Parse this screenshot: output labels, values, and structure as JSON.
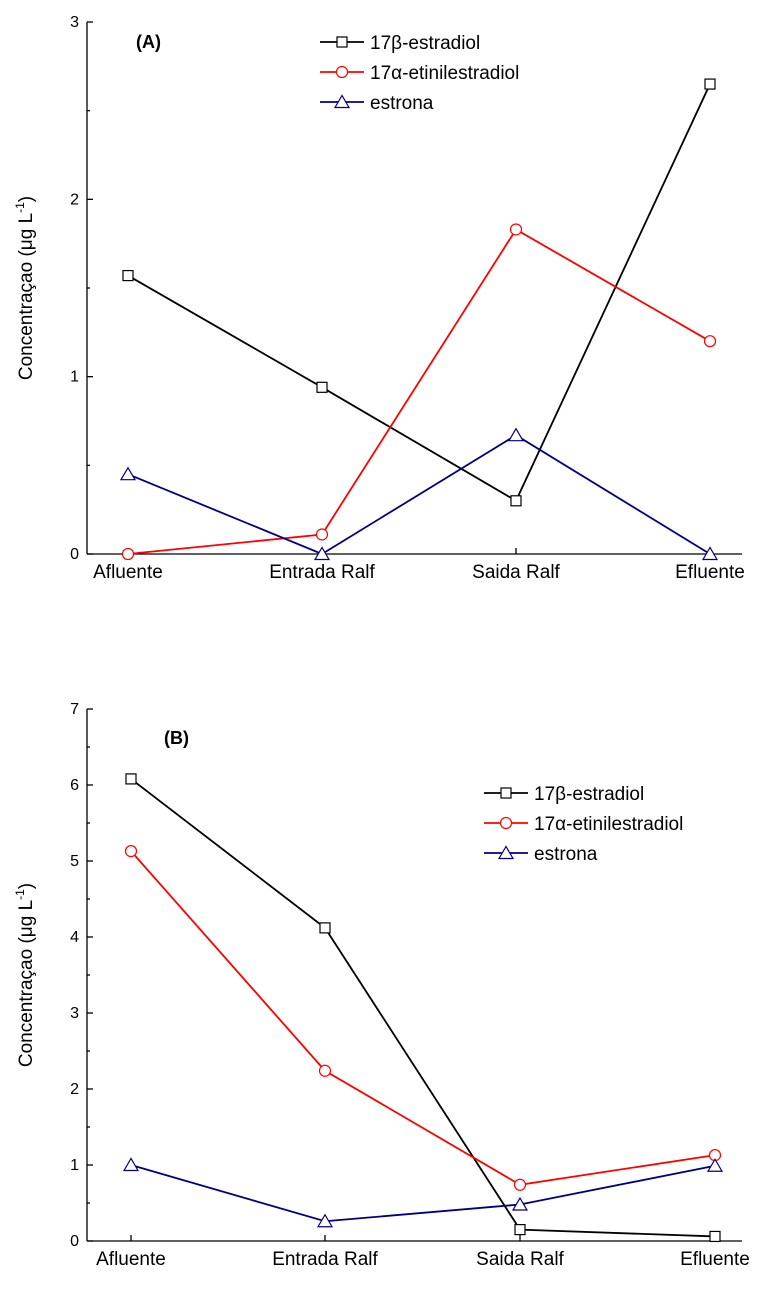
{
  "chart_data": [
    {
      "type": "line",
      "panel_label": "(A)",
      "ylabel": "Concentraçao (μg L",
      "ylabel_sup": "-1",
      "ylabel_close": ")",
      "categories": [
        "Afluente",
        "Entrada Ralf",
        "Saida Ralf",
        "Efluente"
      ],
      "ylim": [
        0,
        3
      ],
      "yticks": [
        "0",
        "1",
        "2",
        "3"
      ],
      "legend_position": "top-center",
      "series": [
        {
          "name": "17β-estradiol",
          "values": [
            1.57,
            0.94,
            0.3,
            2.65
          ],
          "color": "#000000",
          "marker": "square"
        },
        {
          "name": "17α-etinilestradiol",
          "values": [
            0.0,
            0.11,
            1.83,
            1.2
          ],
          "color": "#ff0000",
          "marker": "circle"
        },
        {
          "name": "estrona",
          "values": [
            0.45,
            0.0,
            0.67,
            0.0
          ],
          "color": "#000080",
          "marker": "triangle"
        }
      ]
    },
    {
      "type": "line",
      "panel_label": "(B)",
      "ylabel": "Concentraçao (μg L",
      "ylabel_sup": "-1",
      "ylabel_close": ")",
      "categories": [
        "Afluente",
        "Entrada Ralf",
        "Saida Ralf",
        "Efluente"
      ],
      "ylim": [
        0,
        7
      ],
      "yticks": [
        "0",
        "1",
        "2",
        "3",
        "4",
        "5",
        "6",
        "7"
      ],
      "legend_position": "top-right",
      "series": [
        {
          "name": "17β-estradiol",
          "values": [
            6.08,
            4.12,
            0.15,
            0.06
          ],
          "color": "#000000",
          "marker": "square"
        },
        {
          "name": "17α-etinilestradiol",
          "values": [
            5.13,
            2.24,
            0.74,
            1.13
          ],
          "color": "#ff0000",
          "marker": "circle"
        },
        {
          "name": "estrona",
          "values": [
            1.0,
            0.26,
            0.48,
            0.99
          ],
          "color": "#000080",
          "marker": "triangle"
        }
      ]
    }
  ]
}
